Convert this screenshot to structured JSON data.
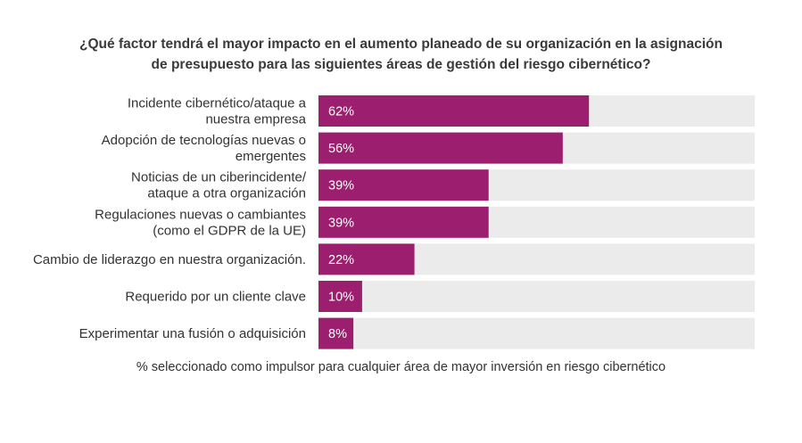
{
  "chart_data": {
    "type": "bar",
    "orientation": "horizontal",
    "title_lines": [
      "¿Qué factor tendrá el mayor impacto en el aumento planeado de su organización en la asignación",
      "de presupuesto para las siguientes áreas de gestión del riesgo cibernético?"
    ],
    "categories": [
      [
        "Incidente cibernético/ataque a",
        "nuestra empresa"
      ],
      [
        "Adopción de tecnologías nuevas o",
        "emergentes"
      ],
      [
        "Noticias de un ciberincidente/",
        "ataque a otra organización"
      ],
      [
        "Regulaciones nuevas o cambiantes",
        "(como el GDPR de la UE)"
      ],
      [
        "Cambio de liderazgo en nuestra organización."
      ],
      [
        "Requerido por un cliente clave"
      ],
      [
        "Experimentar una fusión o adquisición"
      ]
    ],
    "values": [
      62,
      56,
      39,
      39,
      22,
      10,
      8
    ],
    "value_labels": [
      "62%",
      "56%",
      "39%",
      "39%",
      "22%",
      "10%",
      "8%"
    ],
    "xlim": [
      0,
      100
    ],
    "footnote": "% seleccionado como impulsor para cualquier área de mayor inversión en riesgo cibernético",
    "colors": {
      "bar": "#9b1f6e",
      "track": "#ebebeb"
    }
  }
}
